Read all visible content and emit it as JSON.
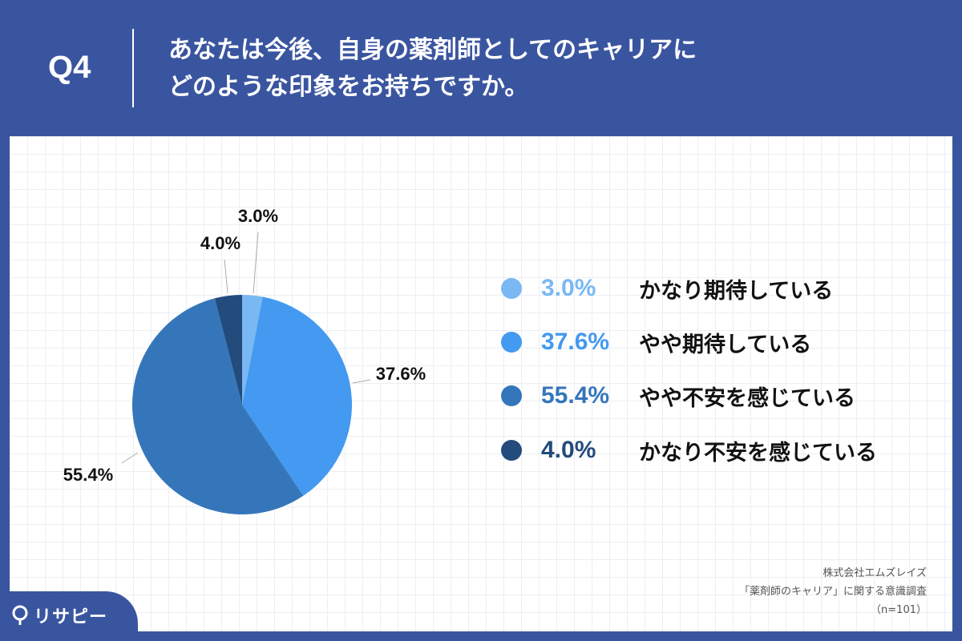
{
  "header": {
    "q_label": "Q4",
    "title_line1": "あなたは今後、自身の薬剤師としてのキャリアに",
    "title_line2": "どのような印象をお持ちですか。"
  },
  "chart_data": {
    "type": "pie",
    "categories": [
      "かなり期待している",
      "やや期待している",
      "やや不安を感じている",
      "かなり不安を感じている"
    ],
    "values": [
      3.0,
      37.6,
      55.4,
      4.0
    ],
    "data_labels": [
      "3.0%",
      "37.6%",
      "55.4%",
      "4.0%"
    ],
    "colors": [
      "#7ab8f3",
      "#4499f0",
      "#3576bb",
      "#234b7c"
    ],
    "start_angle": "top",
    "direction": "clockwise",
    "legend_position": "right"
  },
  "legend_colors": [
    "#7ab8f3",
    "#4499f0",
    "#3576bb",
    "#234b7c"
  ],
  "source": {
    "line1": "株式会社エムズレイズ",
    "line2": "「薬剤師のキャリア」に関する意識調査",
    "line3": "（n=101）"
  },
  "logo": {
    "text": "リサピー"
  }
}
